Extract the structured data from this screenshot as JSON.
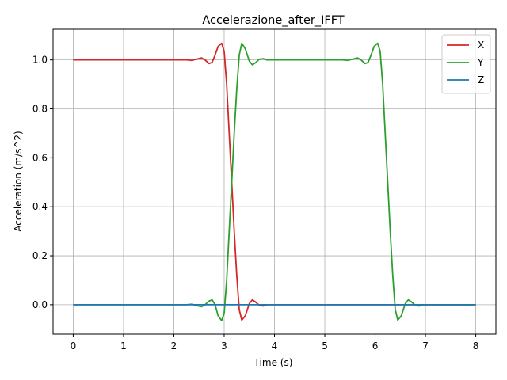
{
  "chart_data": {
    "type": "line",
    "title": "Accelerazione_after_IFFT",
    "xlabel": "Time (s)",
    "ylabel": "Acceleration (m/s^2)",
    "xlim": [
      -0.4,
      8.4
    ],
    "ylim": [
      -0.12,
      1.125
    ],
    "xticks": [
      0,
      1,
      2,
      3,
      4,
      5,
      6,
      7,
      8
    ],
    "xtick_labels": [
      "0",
      "1",
      "2",
      "3",
      "4",
      "5",
      "6",
      "7",
      "8"
    ],
    "yticks": [
      0.0,
      0.2,
      0.4,
      0.6,
      0.8,
      1.0
    ],
    "ytick_labels": [
      "0.0",
      "0.2",
      "0.4",
      "0.6",
      "0.8",
      "1.0"
    ],
    "grid": true,
    "legend_position": "top-right",
    "series": [
      {
        "name": "X",
        "color": "#d62728",
        "points": [
          [
            0,
            1.0
          ],
          [
            1,
            1.0
          ],
          [
            2,
            1.0
          ],
          [
            2.25,
            1.0
          ],
          [
            2.35,
            0.998
          ],
          [
            2.45,
            1.003
          ],
          [
            2.55,
            1.008
          ],
          [
            2.62,
            1.0
          ],
          [
            2.7,
            0.985
          ],
          [
            2.76,
            0.99
          ],
          [
            2.82,
            1.02
          ],
          [
            2.88,
            1.055
          ],
          [
            2.95,
            1.068
          ],
          [
            3.0,
            1.035
          ],
          [
            3.05,
            0.9
          ],
          [
            3.1,
            0.7
          ],
          [
            3.15,
            0.5
          ],
          [
            3.2,
            0.3
          ],
          [
            3.25,
            0.12
          ],
          [
            3.3,
            -0.02
          ],
          [
            3.35,
            -0.063
          ],
          [
            3.42,
            -0.045
          ],
          [
            3.5,
            0.005
          ],
          [
            3.56,
            0.02
          ],
          [
            3.62,
            0.012
          ],
          [
            3.7,
            -0.003
          ],
          [
            3.78,
            -0.005
          ],
          [
            3.85,
            0.0
          ],
          [
            4,
            0.0
          ],
          [
            5,
            0.0
          ],
          [
            6,
            0.0
          ],
          [
            7,
            0.0
          ],
          [
            8,
            0.0
          ]
        ]
      },
      {
        "name": "Y",
        "color": "#2ca02c",
        "points": [
          [
            0,
            0.0
          ],
          [
            1,
            0.0
          ],
          [
            2,
            0.0
          ],
          [
            2.25,
            0.0
          ],
          [
            2.35,
            0.002
          ],
          [
            2.45,
            -0.003
          ],
          [
            2.55,
            -0.008
          ],
          [
            2.62,
            0.0
          ],
          [
            2.7,
            0.015
          ],
          [
            2.76,
            0.02
          ],
          [
            2.82,
            0.0
          ],
          [
            2.88,
            -0.045
          ],
          [
            2.95,
            -0.065
          ],
          [
            3.0,
            -0.035
          ],
          [
            3.05,
            0.1
          ],
          [
            3.1,
            0.3
          ],
          [
            3.15,
            0.5
          ],
          [
            3.2,
            0.7
          ],
          [
            3.25,
            0.88
          ],
          [
            3.3,
            1.02
          ],
          [
            3.35,
            1.068
          ],
          [
            3.42,
            1.045
          ],
          [
            3.5,
            0.995
          ],
          [
            3.56,
            0.98
          ],
          [
            3.62,
            0.988
          ],
          [
            3.7,
            1.003
          ],
          [
            3.78,
            1.005
          ],
          [
            3.85,
            1.0
          ],
          [
            4,
            1.0
          ],
          [
            5,
            1.0
          ],
          [
            5.35,
            1.0
          ],
          [
            5.45,
            0.998
          ],
          [
            5.55,
            1.003
          ],
          [
            5.65,
            1.008
          ],
          [
            5.72,
            1.0
          ],
          [
            5.8,
            0.985
          ],
          [
            5.86,
            0.99
          ],
          [
            5.92,
            1.02
          ],
          [
            5.98,
            1.055
          ],
          [
            6.05,
            1.068
          ],
          [
            6.1,
            1.035
          ],
          [
            6.15,
            0.9
          ],
          [
            6.2,
            0.7
          ],
          [
            6.25,
            0.5
          ],
          [
            6.3,
            0.3
          ],
          [
            6.35,
            0.12
          ],
          [
            6.4,
            -0.02
          ],
          [
            6.45,
            -0.063
          ],
          [
            6.52,
            -0.045
          ],
          [
            6.6,
            0.005
          ],
          [
            6.66,
            0.02
          ],
          [
            6.72,
            0.012
          ],
          [
            6.8,
            -0.003
          ],
          [
            6.88,
            -0.005
          ],
          [
            6.95,
            0.0
          ],
          [
            7,
            0.0
          ],
          [
            8,
            0.0
          ]
        ]
      },
      {
        "name": "Z",
        "color": "#1f77b4",
        "points": [
          [
            0,
            0.0
          ],
          [
            2,
            0.0
          ],
          [
            3,
            0.0
          ],
          [
            4,
            0.0
          ],
          [
            5,
            0.0
          ],
          [
            6,
            0.0
          ],
          [
            7,
            0.0
          ],
          [
            8,
            0.0
          ]
        ]
      }
    ]
  }
}
